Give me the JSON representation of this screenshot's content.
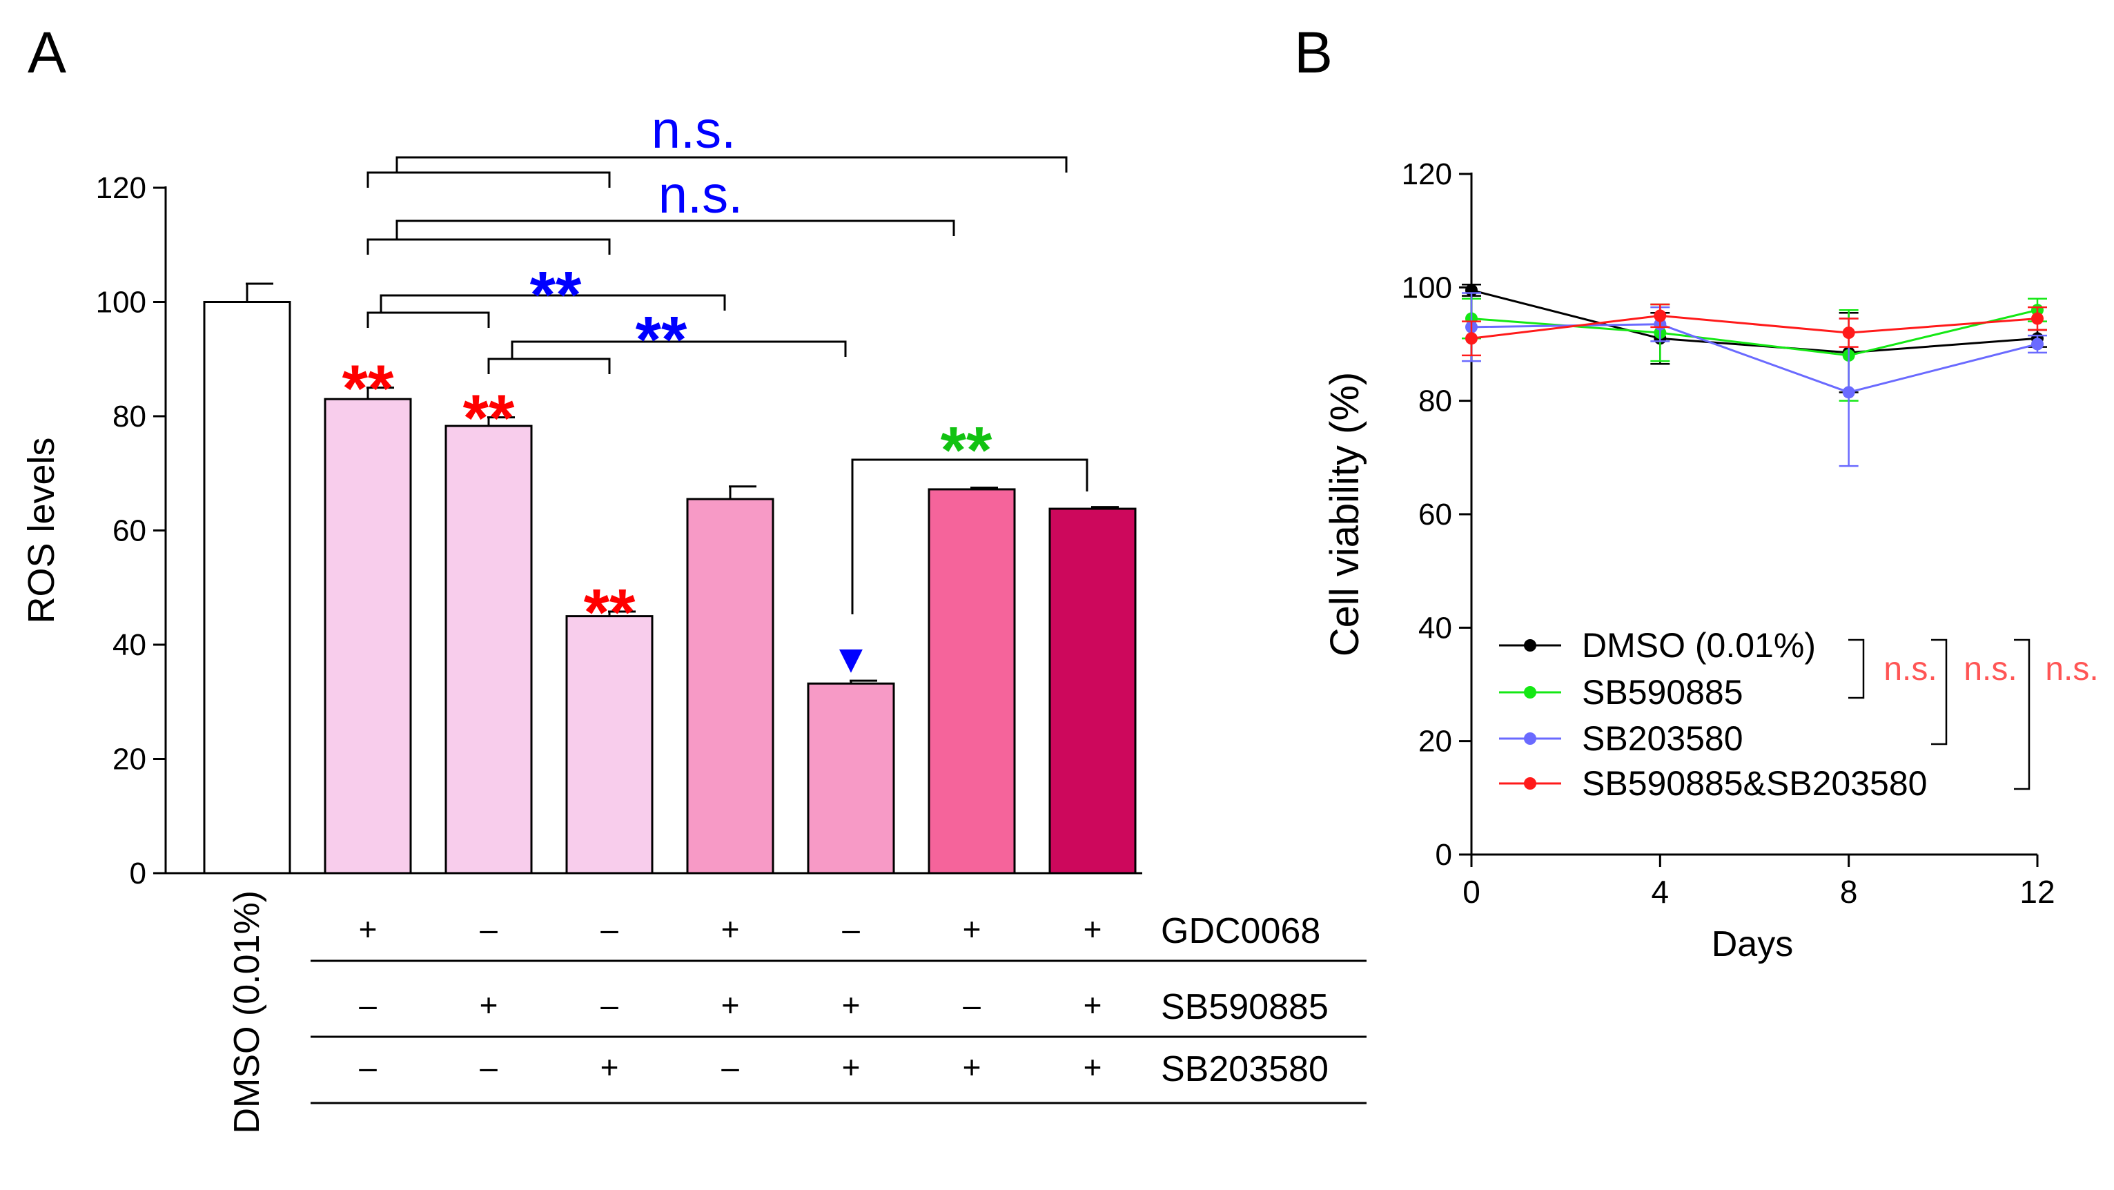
{
  "panels": {
    "a_label": "A",
    "b_label": "B"
  },
  "colors": {
    "white": "#ffffff",
    "light_pink": "#f8cdec",
    "mid_pink": "#f79ac6",
    "hot_pink": "#f5649b",
    "magenta": "#cd085c",
    "red": "#ff0000",
    "blue": "#0000ff",
    "green": "#12c212",
    "ns_red": "#ff5555",
    "black": "#000000"
  },
  "chart_data": [
    {
      "type": "bar",
      "panel": "A",
      "title": "",
      "ylabel": "ROS levels",
      "xlabel": "",
      "ylim": [
        0,
        120
      ],
      "yticks": [
        "0",
        "20",
        "40",
        "60",
        "80",
        "100",
        "120"
      ],
      "categories": [
        "DMSO (0.01%)",
        "GDC0068",
        "SB590885",
        "SB203580",
        "GDC0068+SB590885",
        "SB590885+SB203580",
        "GDC0068+SB203580",
        "GDC0068+SB590885+SB203580"
      ],
      "values": [
        100,
        83,
        78.3,
        45,
        65.5,
        33.2,
        67.2,
        63.8
      ],
      "errors": [
        3.2,
        2,
        1.5,
        0.8,
        2.2,
        0.5,
        0.3,
        0.3
      ],
      "fill_colors": [
        "#ffffff",
        "#f8cdec",
        "#f8cdec",
        "#f8cdec",
        "#f79ac6",
        "#f79ac6",
        "#f5649b",
        "#cd085c"
      ],
      "bar_annotations": [
        {
          "bar": 1,
          "text": "**",
          "color": "#ff0000"
        },
        {
          "bar": 2,
          "text": "**",
          "color": "#ff0000"
        },
        {
          "bar": 3,
          "text": "**",
          "color": "#ff0000"
        },
        {
          "bar": 5,
          "text": "▼",
          "color": "#0000ff"
        }
      ],
      "comparisons": [
        {
          "group": [
            1,
            3
          ],
          "vs": 7,
          "label": "n.s.",
          "color": "#0000ff"
        },
        {
          "group": [
            1,
            3
          ],
          "vs": 6,
          "label": "n.s.",
          "color": "#0000ff"
        },
        {
          "group": [
            1,
            2
          ],
          "vs": 4,
          "label": "**",
          "color": "#0000ff"
        },
        {
          "group": [
            2,
            3
          ],
          "vs": 5,
          "label": "**",
          "color": "#0000ff"
        },
        {
          "group": [
            5,
            5
          ],
          "vs": 7,
          "label": "**",
          "color": "#12c212"
        }
      ],
      "treatment_table": {
        "dmso_label": "DMSO (0.01%)",
        "rows": [
          {
            "name": "GDC0068",
            "signs": [
              "+",
              "–",
              "–",
              "+",
              "–",
              "+",
              "+"
            ]
          },
          {
            "name": "SB590885",
            "signs": [
              "–",
              "+",
              "–",
              "+",
              "+",
              "–",
              "+"
            ]
          },
          {
            "name": "SB203580",
            "signs": [
              "–",
              "–",
              "+",
              "–",
              "+",
              "+",
              "+"
            ]
          }
        ]
      }
    },
    {
      "type": "line",
      "panel": "B",
      "title": "",
      "xlabel": "Days",
      "ylabel": "Cell viability (%)",
      "x": [
        0,
        4,
        8,
        12
      ],
      "xticks": [
        "0",
        "4",
        "8",
        "12"
      ],
      "xlim": [
        0,
        12
      ],
      "ylim": [
        0,
        120
      ],
      "yticks": [
        "0",
        "20",
        "40",
        "60",
        "80",
        "100",
        "120"
      ],
      "series": [
        {
          "name": "DMSO (0.01%)",
          "color": "#000000",
          "values": [
            99.5,
            91,
            88.5,
            91
          ],
          "errors": [
            1.0,
            4.5,
            7.0,
            1.5
          ]
        },
        {
          "name": "SB590885",
          "color": "#14e814",
          "values": [
            94.5,
            92,
            88,
            96
          ],
          "errors": [
            3.5,
            5.0,
            8.0,
            2.0
          ]
        },
        {
          "name": "SB203580",
          "color": "#6a6aff",
          "values": [
            93,
            93.5,
            81.5,
            90
          ],
          "errors": [
            6.0,
            3.0,
            13.0,
            1.5
          ]
        },
        {
          "name": "SB590885&SB203580",
          "color": "#ff1a1a",
          "values": [
            91,
            95,
            92,
            94.5
          ],
          "errors": [
            3.0,
            2.0,
            2.5,
            2.0
          ]
        }
      ],
      "legend_position": "bottom-left",
      "significance": [
        "n.s.",
        "n.s.",
        "n.s."
      ]
    }
  ]
}
